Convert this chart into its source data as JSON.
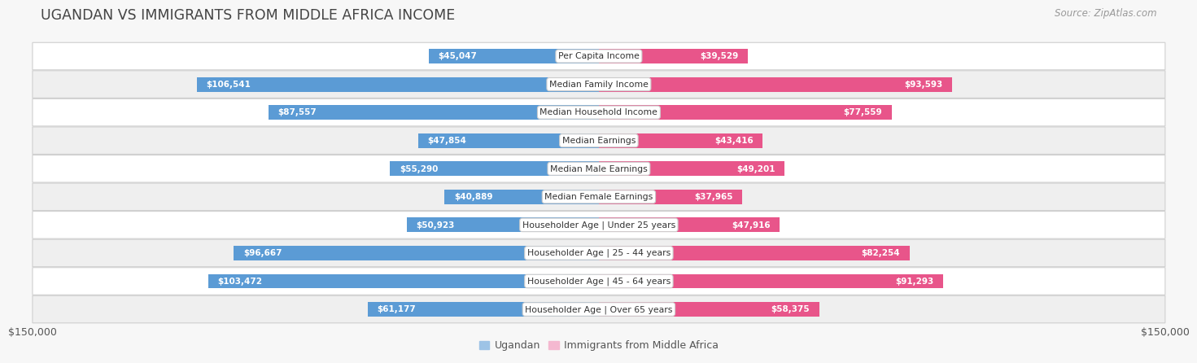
{
  "title": "UGANDAN VS IMMIGRANTS FROM MIDDLE AFRICA INCOME",
  "source": "Source: ZipAtlas.com",
  "categories": [
    "Per Capita Income",
    "Median Family Income",
    "Median Household Income",
    "Median Earnings",
    "Median Male Earnings",
    "Median Female Earnings",
    "Householder Age | Under 25 years",
    "Householder Age | 25 - 44 years",
    "Householder Age | 45 - 64 years",
    "Householder Age | Over 65 years"
  ],
  "ugandan": [
    45047,
    106541,
    87557,
    47854,
    55290,
    40889,
    50923,
    96667,
    103472,
    61177
  ],
  "immigrants": [
    39529,
    93593,
    77559,
    43416,
    49201,
    37965,
    47916,
    82254,
    91293,
    58375
  ],
  "ugandan_color_dark": "#5b9bd5",
  "ugandan_color_light": "#9dc3e6",
  "immigrants_color_dark": "#e8558a",
  "immigrants_color_light": "#f4b8d0",
  "bar_height": 0.52,
  "max_val": 150000,
  "bg_color": "#f7f7f7",
  "row_colors": [
    "#ffffff",
    "#efefef"
  ],
  "row_border_color": "#d0d0d0",
  "label_color_inside": "#ffffff",
  "label_color_outside": "#555555",
  "title_color": "#444444",
  "legend_ugandan": "Ugandan",
  "legend_immigrants": "Immigrants from Middle Africa",
  "xlabel_left": "$150,000",
  "xlabel_right": "$150,000",
  "inside_threshold": 27000
}
